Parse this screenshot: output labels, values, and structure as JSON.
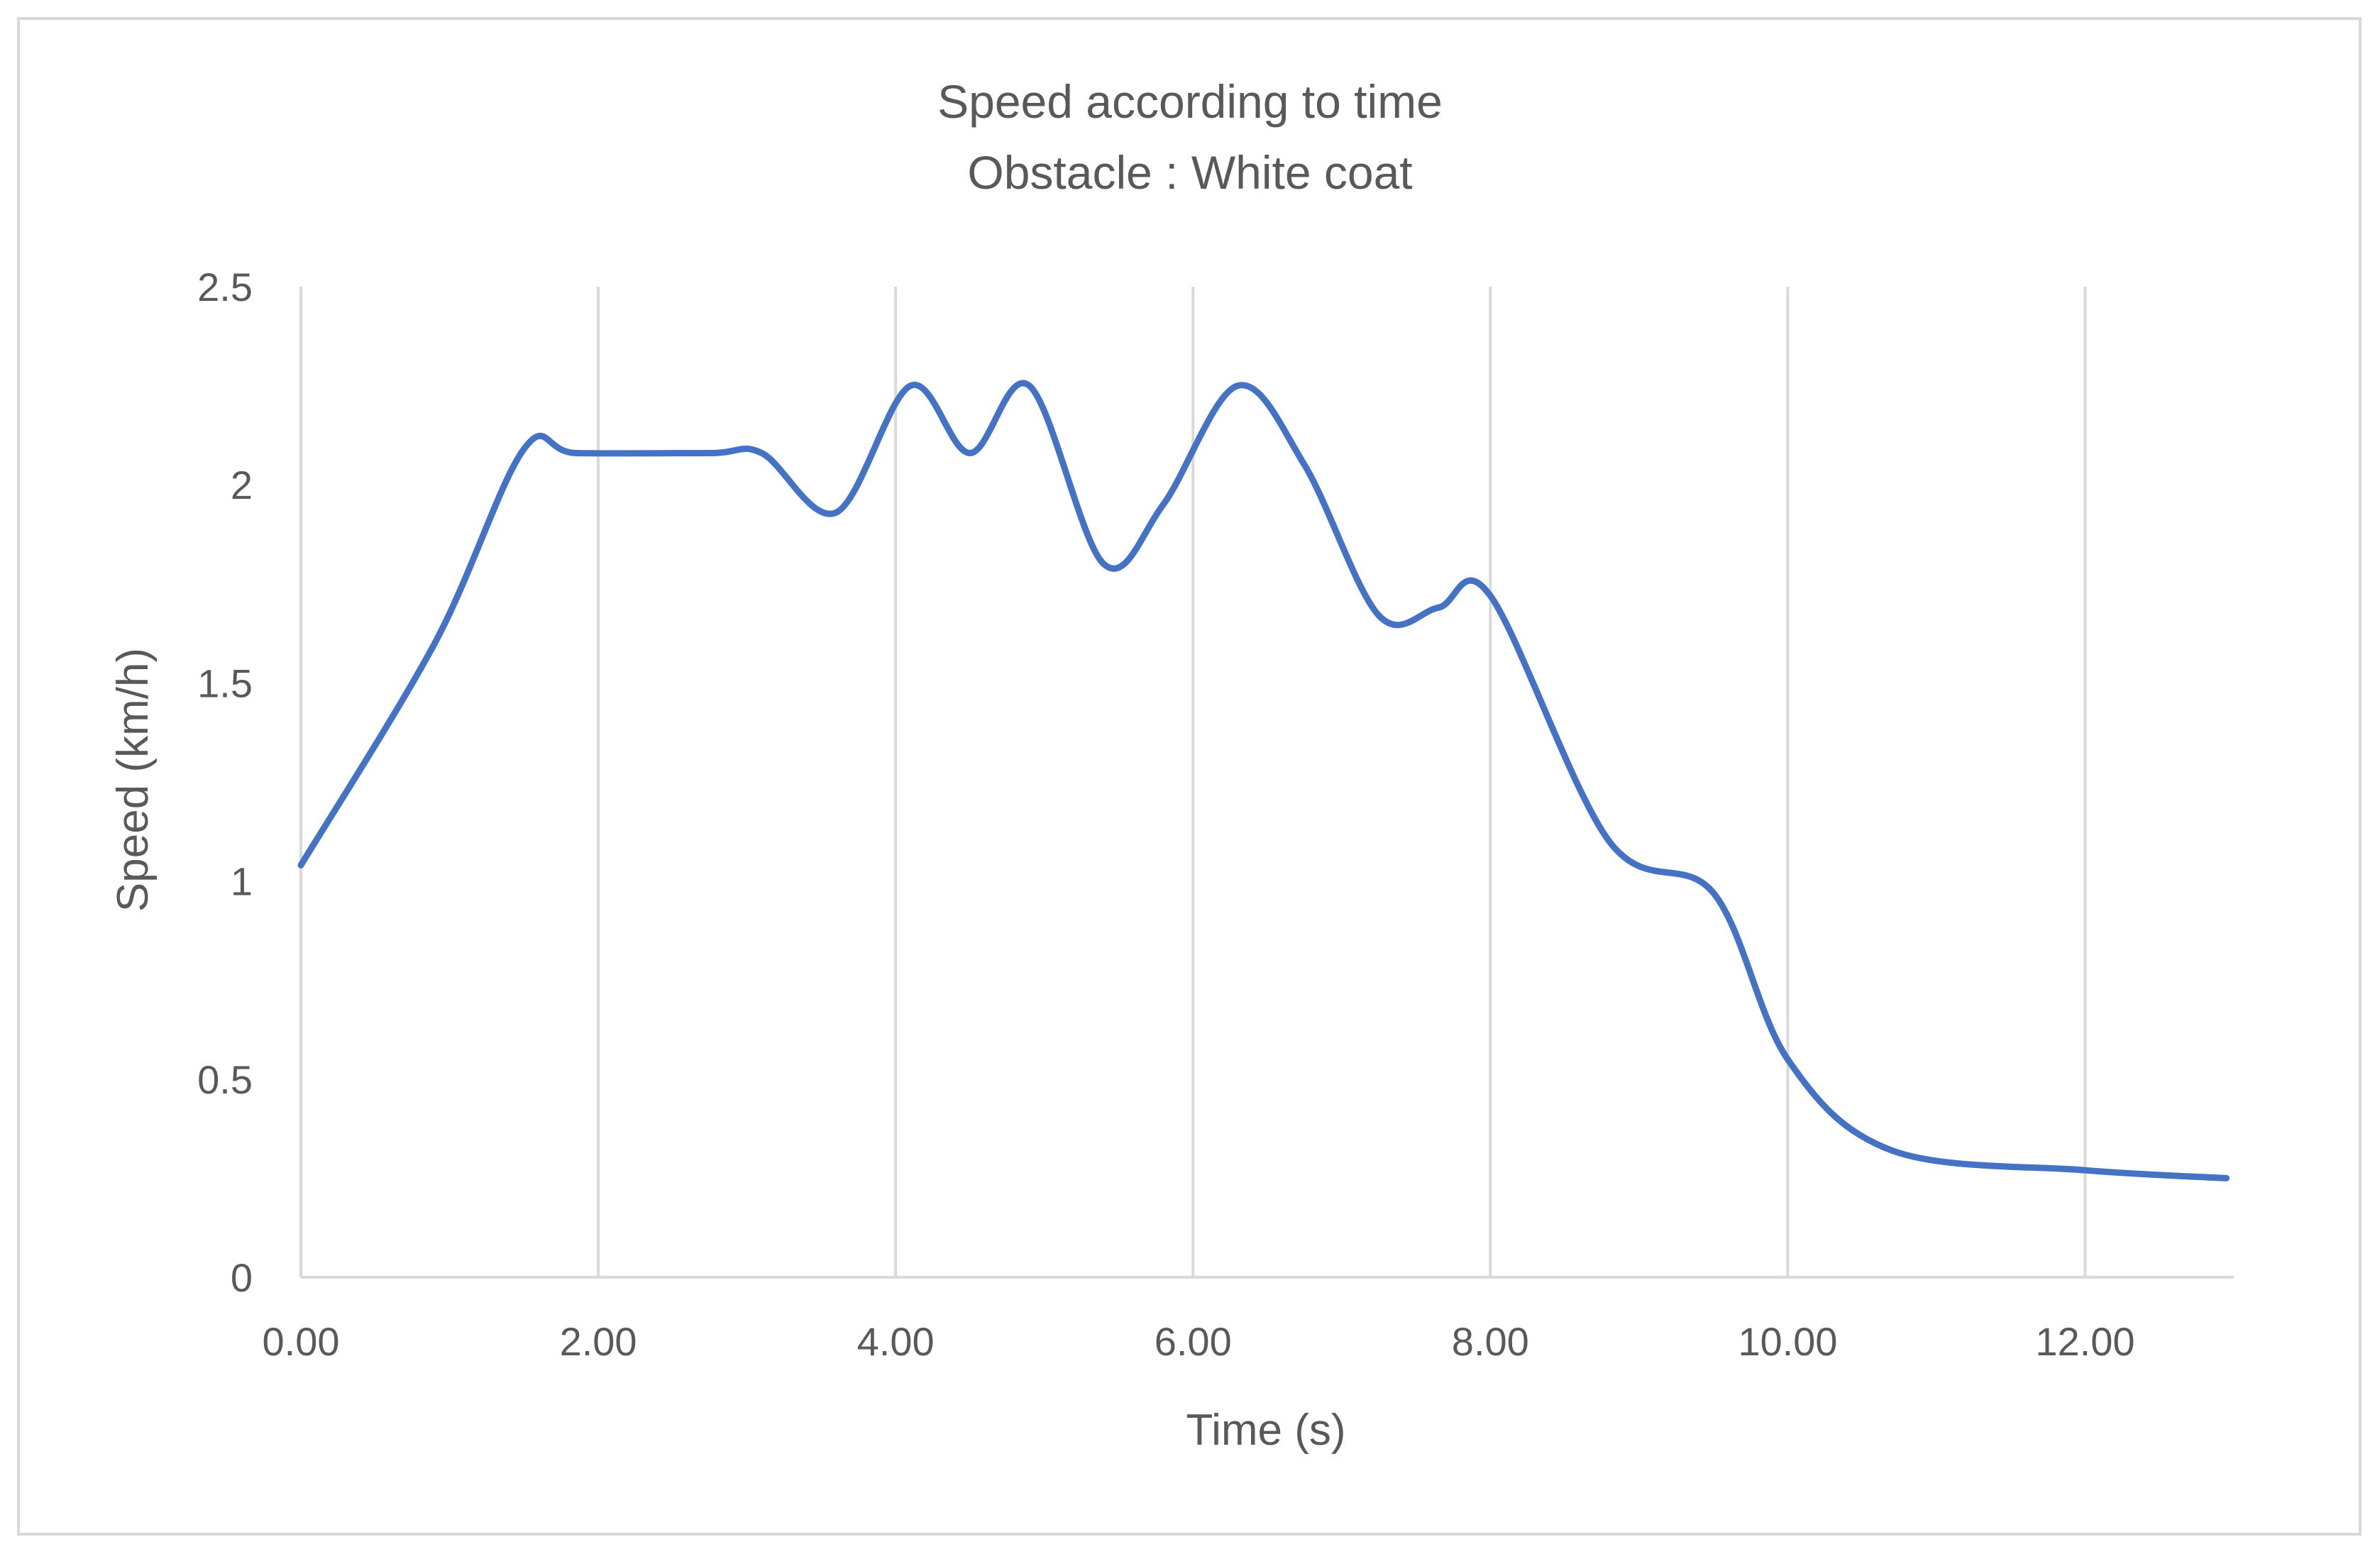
{
  "chart_data": {
    "type": "line",
    "title": "Speed according to time",
    "subtitle": "Obstacle : White coat",
    "xlabel": "Time (s)",
    "ylabel": "Speed (km/h)",
    "xlim": [
      0,
      13
    ],
    "ylim": [
      0,
      2.5
    ],
    "x_ticks": [
      "0.00",
      "2.00",
      "4.00",
      "6.00",
      "8.00",
      "10.00",
      "12.00"
    ],
    "y_ticks": [
      "0",
      "0.5",
      "1",
      "1.5",
      "2",
      "2.5"
    ],
    "grid": "vertical",
    "legend": "none",
    "series": [
      {
        "color": "#4472c4",
        "smooth": true,
        "x": [
          0.0,
          0.9,
          1.5,
          1.85,
          2.75,
          3.1,
          3.6,
          4.1,
          4.5,
          4.9,
          5.4,
          5.8,
          6.3,
          6.75,
          7.25,
          7.65,
          8.0,
          8.8,
          9.5,
          10.0,
          10.7,
          12.0,
          12.95
        ],
        "y": [
          1.04,
          1.6,
          2.09,
          2.08,
          2.08,
          2.08,
          1.93,
          2.25,
          2.08,
          2.25,
          1.8,
          1.95,
          2.25,
          2.05,
          1.67,
          1.69,
          1.72,
          1.1,
          0.97,
          0.55,
          0.32,
          0.27,
          0.25
        ]
      }
    ]
  }
}
